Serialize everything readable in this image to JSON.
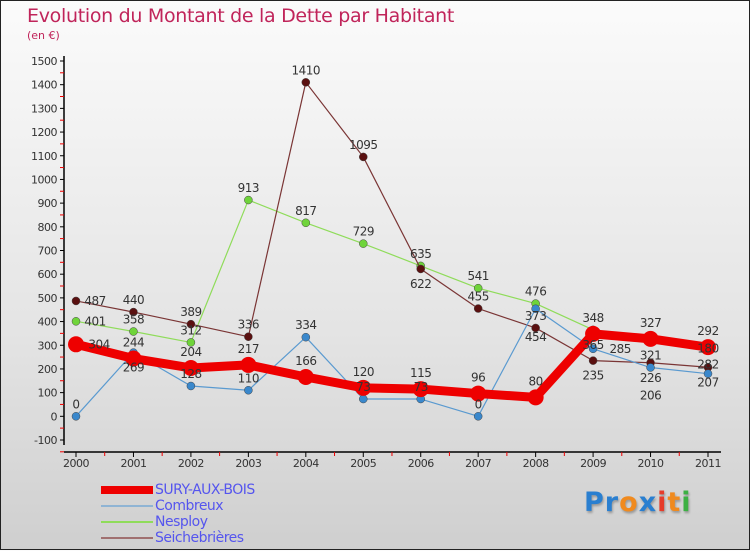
{
  "chart_data": {
    "type": "line",
    "title": "Evolution du Montant de la Dette par Habitant",
    "subtitle": "(en €)",
    "xlabel": "",
    "ylabel": "",
    "ylim": [
      -100,
      1500
    ],
    "y_ticks": [
      -100,
      0,
      100,
      200,
      300,
      400,
      500,
      600,
      700,
      800,
      900,
      1000,
      1100,
      1200,
      1300,
      1400,
      1500
    ],
    "categories": [
      "2000",
      "2001",
      "2002",
      "2003",
      "2004",
      "2005",
      "2006",
      "2007",
      "2008",
      "2009",
      "2010",
      "2011"
    ],
    "legend_position": "bottom-left",
    "series": [
      {
        "name": "Nesploy",
        "color": "#8fdc5a",
        "width": 1.2,
        "marker": "#6fd43a",
        "values": [
          401,
          358,
          312,
          913,
          817,
          729,
          635,
          541,
          476,
          365,
          321,
          282
        ]
      },
      {
        "name": "Seichebrières",
        "color": "#7a3535",
        "width": 1.2,
        "marker": "#5a1010",
        "values": [
          487,
          440,
          389,
          336,
          1410,
          1095,
          622,
          455,
          373,
          235,
          226,
          207
        ]
      },
      {
        "name": "Combreux",
        "color": "#5a9ad0",
        "width": 1.2,
        "marker": "#3a88cc",
        "values": [
          0,
          269,
          128,
          110,
          334,
          73,
          73,
          0,
          454,
          285,
          206,
          180
        ]
      },
      {
        "name": "SURY-AUX-BOIS",
        "color": "#ee0000",
        "width": 9,
        "marker": "#ee0000",
        "values": [
          304,
          244,
          204,
          217,
          166,
          120,
          115,
          96,
          80,
          348,
          327,
          292
        ]
      }
    ],
    "legend": [
      "SURY-AUX-BOIS",
      "Combreux",
      "Nesploy",
      "Seichebrières"
    ]
  },
  "legend_colors": [
    "#ee0000",
    "#8fb4d4",
    "#8fdc5a",
    "#a07070"
  ],
  "logo": {
    "text": "Proxiti",
    "letters": [
      "P",
      "r",
      "o",
      "x",
      "i",
      "t",
      "i"
    ],
    "colors": [
      "#2a7fd0",
      "#2a7fd0",
      "#f08a1e",
      "#2a7fd0",
      "#e63c2a",
      "#f08a1e",
      "#3cb043"
    ]
  }
}
